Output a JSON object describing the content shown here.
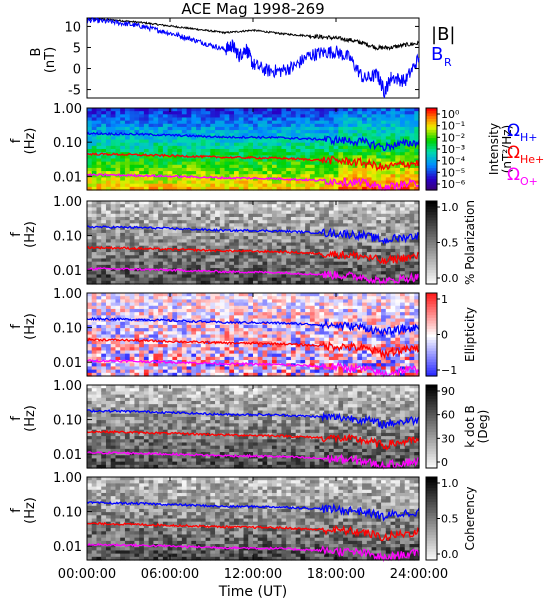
{
  "title": "ACE Mag 1998-269",
  "x_axis": {
    "label": "Time (UT)",
    "ticks": [
      "00:00:00",
      "06:00:00",
      "12:00:00",
      "18:00:00",
      "24:00:00"
    ]
  },
  "freq_ticks": [
    "1.00",
    "0.10",
    "0.01"
  ],
  "freq_ylabel": [
    "f",
    "(Hz)"
  ],
  "lines": [
    {
      "name": "Ω",
      "sub": "H+",
      "color": "#0000ff"
    },
    {
      "name": "Ω",
      "sub": "He+",
      "color": "#ff0000"
    },
    {
      "name": "Ω",
      "sub": "O+",
      "color": "#ff00ff"
    }
  ],
  "colors": {
    "bmag": "#000000",
    "br": "#0000ff"
  },
  "chart_data": [
    {
      "type": "line",
      "title": "ACE Mag 1998-269",
      "ylabel": [
        "B",
        "(nT)"
      ],
      "ylim": [
        -7,
        12
      ],
      "yticks": [
        "10",
        "5",
        "0",
        "-5"
      ],
      "xlim_hours": [
        0,
        24
      ],
      "legend": [
        "|B|",
        "B",
        "R"
      ],
      "series": [
        {
          "name": "|B|",
          "color": "#000000",
          "x": [
            0,
            1,
            2,
            3,
            4,
            5,
            6,
            7,
            8,
            9,
            10,
            11,
            12,
            13,
            14,
            15,
            16,
            17,
            18,
            19,
            20,
            21,
            22,
            23,
            24
          ],
          "values": [
            11.8,
            11.7,
            11.5,
            11.2,
            10.9,
            10.5,
            10.1,
            9.7,
            9.3,
            8.9,
            8.5,
            8.8,
            9.1,
            8.7,
            8.3,
            8.0,
            7.8,
            7.5,
            7.2,
            6.8,
            6.0,
            4.9,
            5.0,
            5.6,
            6.0
          ]
        },
        {
          "name": "B",
          "color": "#0000ff",
          "x": [
            0,
            1,
            2,
            3,
            4,
            5,
            6,
            7,
            8,
            9,
            10,
            10.5,
            11,
            11.5,
            12,
            13,
            14,
            15,
            16,
            17,
            18,
            19,
            20,
            21,
            21.5,
            22,
            23,
            24
          ],
          "values": [
            11.5,
            11.3,
            11,
            10.5,
            10,
            9.2,
            8.4,
            7.5,
            6.5,
            5.5,
            4.5,
            5.5,
            3.0,
            4.8,
            1.0,
            -0.5,
            -0.6,
            0.5,
            3.0,
            3.8,
            4.0,
            2.5,
            -2.5,
            -1.5,
            -5.5,
            -2.0,
            -3.0,
            2.5
          ]
        }
      ]
    },
    {
      "type": "heatmap",
      "ylabel": [
        "f",
        "(Hz)"
      ],
      "colorbar": {
        "label": "Intensity",
        "unit": "(nT²/Hz)",
        "ticks": [
          "10⁰",
          "10⁻¹",
          "10⁻²",
          "10⁻³",
          "10⁻⁴",
          "10⁻⁵",
          "10⁻⁶"
        ]
      }
    },
    {
      "type": "heatmap",
      "ylabel": [
        "f",
        "(Hz)"
      ],
      "colorbar": {
        "label": "% Polarization",
        "ticks": [
          "1.0",
          "0.5",
          "0.0"
        ]
      }
    },
    {
      "type": "heatmap",
      "ylabel": [
        "f",
        "(Hz)"
      ],
      "colorbar": {
        "label": "Ellipticity",
        "ticks": [
          "1",
          "0",
          "−1"
        ]
      }
    },
    {
      "type": "heatmap",
      "ylabel": [
        "f",
        "(Hz)"
      ],
      "colorbar": {
        "label": "k dot B",
        "unit": "(Deg)",
        "ticks": [
          "90",
          "60",
          "30",
          "0"
        ]
      }
    },
    {
      "type": "heatmap",
      "ylabel": [
        "f",
        "(Hz)"
      ],
      "colorbar": {
        "label": "Coherency",
        "ticks": [
          "1.0",
          "0.5",
          "0.0"
        ]
      }
    },
    {
      "type": "line",
      "name": "gyrofrequency lines (overlaid on each panel)",
      "x": [
        0,
        2,
        4,
        6,
        8,
        10,
        12,
        14,
        16,
        17,
        18,
        19,
        20,
        21,
        21.5,
        22,
        23,
        24
      ],
      "series": [
        {
          "name": "ΩH+",
          "color": "#0000ff",
          "values": [
            0.18,
            0.175,
            0.17,
            0.16,
            0.15,
            0.14,
            0.14,
            0.135,
            0.125,
            0.12,
            0.115,
            0.11,
            0.1,
            0.08,
            0.07,
            0.08,
            0.09,
            0.1
          ]
        },
        {
          "name": "ΩHe+",
          "color": "#ff0000",
          "values": [
            0.045,
            0.044,
            0.042,
            0.04,
            0.038,
            0.036,
            0.035,
            0.034,
            0.031,
            0.03,
            0.029,
            0.027,
            0.025,
            0.02,
            0.017,
            0.02,
            0.023,
            0.025
          ]
        },
        {
          "name": "ΩO+",
          "color": "#ff00ff",
          "values": [
            0.011,
            0.0109,
            0.0105,
            0.01,
            0.0095,
            0.009,
            0.0088,
            0.0085,
            0.0078,
            0.0075,
            0.0072,
            0.0068,
            0.0063,
            0.005,
            0.0043,
            0.005,
            0.0058,
            0.0063
          ]
        }
      ]
    }
  ]
}
